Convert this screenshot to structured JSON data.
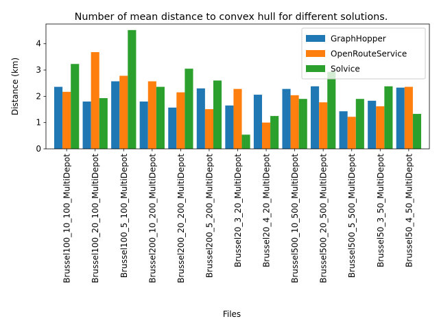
{
  "chart_data": {
    "type": "bar",
    "title": "Number of mean distance to convex hull for different solutions.",
    "xlabel": "Files",
    "ylabel": "Distance (km)",
    "ylim": [
      0,
      4.75
    ],
    "yticks": [
      0,
      1,
      2,
      3,
      4
    ],
    "ytick_labels": [
      "0",
      "1",
      "2",
      "3",
      "4"
    ],
    "grid": false,
    "legend_position": "top-right",
    "categories": [
      "Brussel100_10_100_MultiDepot",
      "Brussel100_20_100_MultiDepot",
      "Brussel100_5_100_MultiDepot",
      "Brussel200_10_200_MultiDepot",
      "Brussel200_20_200_MultiDepot",
      "Brussel200_5_200_MultiDepot",
      "Brussel20_3_20_MultiDepot",
      "Brussel20_4_20_MultiDepot",
      "Brussel500_10_500_MultiDepot",
      "Brussel500_20_500_MultiDepot",
      "Brussel500_5_500_MultiDepot",
      "Brussel50_3_50_MultiDepot",
      "Brussel50_4_50_MultiDepot"
    ],
    "series": [
      {
        "name": "GraphHopper",
        "color": "#1f77b4",
        "values": [
          2.36,
          1.8,
          2.57,
          1.8,
          1.57,
          2.3,
          1.65,
          2.06,
          2.28,
          2.38,
          1.43,
          1.83,
          2.33
        ]
      },
      {
        "name": "OpenRouteService",
        "color": "#ff7f0e",
        "values": [
          2.17,
          3.68,
          2.78,
          2.57,
          2.15,
          1.51,
          2.28,
          1.0,
          2.04,
          1.77,
          1.22,
          1.62,
          2.36
        ]
      },
      {
        "name": "Solvice",
        "color": "#2ca02c",
        "values": [
          3.23,
          1.93,
          4.52,
          2.36,
          3.05,
          2.6,
          0.54,
          1.25,
          1.9,
          2.93,
          1.9,
          2.38,
          1.33
        ]
      }
    ]
  }
}
